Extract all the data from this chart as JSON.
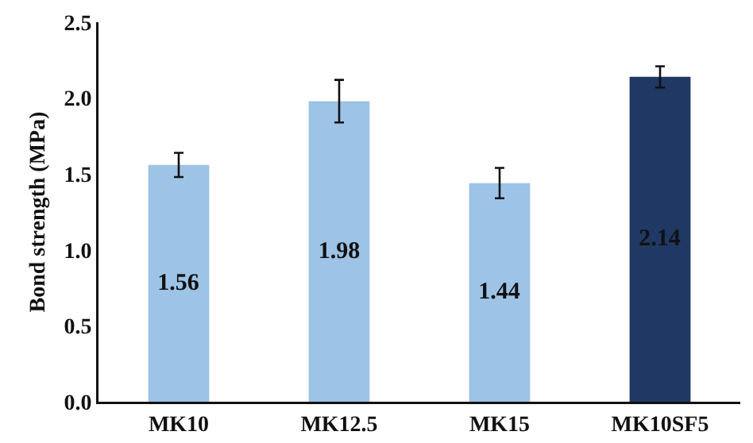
{
  "chart_data": {
    "type": "bar",
    "ylabel": "Bond strength (MPa)",
    "categories": [
      "MK10",
      "MK12.5",
      "MK15",
      "MK10SF5"
    ],
    "values": [
      1.56,
      1.98,
      1.44,
      2.14
    ],
    "errors": [
      0.08,
      0.14,
      0.1,
      0.07
    ],
    "colors": [
      "#9dc3e6",
      "#9dc3e6",
      "#9dc3e6",
      "#1f3864"
    ],
    "data_labels": true,
    "ylim": [
      0,
      2.5
    ],
    "yticks": [
      {
        "value": 0,
        "label": "0.0"
      },
      0.5,
      {
        "value": 1,
        "label": "1.0"
      },
      1.5,
      {
        "value": 2,
        "label": "2.0"
      },
      2.5
    ],
    "grid": false
  }
}
